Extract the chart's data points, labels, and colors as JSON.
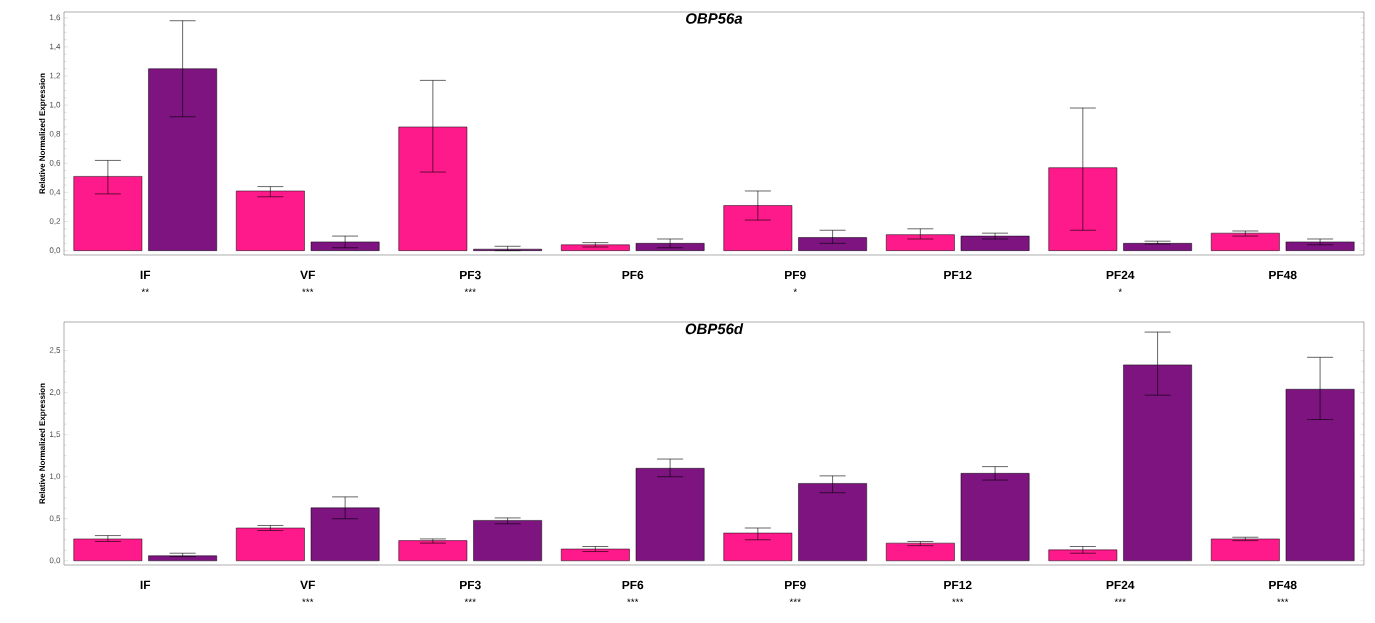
{
  "chart_data": [
    {
      "type": "bar",
      "title": "OBP56a",
      "ylabel": "Relative Normalized Expression",
      "categories": [
        "IF",
        "VF",
        "PF3",
        "PF6",
        "PF9",
        "PF12",
        "PF24",
        "PF48"
      ],
      "series": [
        {
          "color": "#ff1a8c",
          "values": [
            0.51,
            0.41,
            0.85,
            0.04,
            0.31,
            0.11,
            0.57,
            0.12
          ],
          "errors": [
            [
              0.39,
              0.62
            ],
            [
              0.37,
              0.44
            ],
            [
              0.54,
              1.17
            ],
            [
              0.025,
              0.055
            ],
            [
              0.21,
              0.41
            ],
            [
              0.08,
              0.15
            ],
            [
              0.14,
              0.98
            ],
            [
              0.1,
              0.135
            ]
          ]
        },
        {
          "color": "#7d1480",
          "values": [
            1.25,
            0.06,
            0.01,
            0.05,
            0.09,
            0.1,
            0.05,
            0.06
          ],
          "errors": [
            [
              0.92,
              1.58
            ],
            [
              0.02,
              0.1
            ],
            [
              0.0,
              0.03
            ],
            [
              0.02,
              0.08
            ],
            [
              0.05,
              0.14
            ],
            [
              0.08,
              0.12
            ],
            [
              0.045,
              0.065
            ],
            [
              0.04,
              0.08
            ]
          ]
        }
      ],
      "ylim": [
        -0.03,
        1.64
      ],
      "yticks": [
        {
          "value": 0,
          "label": "0,0"
        },
        {
          "value": 0.2,
          "label": "0,2"
        },
        {
          "value": 0.4,
          "label": "0,4"
        },
        {
          "value": 0.6,
          "label": "0,6"
        },
        {
          "value": 0.8,
          "label": "0,8"
        },
        {
          "value": 1.0,
          "label": "1,0"
        },
        {
          "value": 1.2,
          "label": "1,2"
        },
        {
          "value": 1.4,
          "label": "1,4"
        },
        {
          "value": 1.6,
          "label": "1,6"
        }
      ],
      "annotations": [
        "**",
        "***",
        "***",
        null,
        "*",
        null,
        "*",
        null
      ]
    },
    {
      "type": "bar",
      "title": "OBP56d",
      "ylabel": "Relative Normalized Expression",
      "categories": [
        "IF",
        "VF",
        "PF3",
        "PF6",
        "PF9",
        "PF12",
        "PF24",
        "PF48"
      ],
      "series": [
        {
          "color": "#ff1a8c",
          "values": [
            0.26,
            0.39,
            0.24,
            0.14,
            0.33,
            0.21,
            0.13,
            0.26
          ],
          "errors": [
            [
              0.23,
              0.3
            ],
            [
              0.36,
              0.42
            ],
            [
              0.21,
              0.26
            ],
            [
              0.11,
              0.17
            ],
            [
              0.25,
              0.39
            ],
            [
              0.18,
              0.23
            ],
            [
              0.09,
              0.17
            ],
            [
              0.24,
              0.28
            ]
          ]
        },
        {
          "color": "#7d1480",
          "values": [
            0.06,
            0.63,
            0.48,
            1.1,
            0.92,
            1.04,
            2.33,
            2.04
          ],
          "errors": [
            [
              0.05,
              0.09
            ],
            [
              0.5,
              0.76
            ],
            [
              0.44,
              0.51
            ],
            [
              1.0,
              1.21
            ],
            [
              0.81,
              1.01
            ],
            [
              0.96,
              1.12
            ],
            [
              1.97,
              2.72
            ],
            [
              1.68,
              2.42
            ]
          ]
        }
      ],
      "ylim": [
        -0.05,
        2.84
      ],
      "yticks": [
        {
          "value": 0,
          "label": "0,0"
        },
        {
          "value": 0.5,
          "label": "0,5"
        },
        {
          "value": 1.0,
          "label": "1,0"
        },
        {
          "value": 1.5,
          "label": "1,5"
        },
        {
          "value": 2.0,
          "label": "2,0"
        },
        {
          "value": 2.5,
          "label": "2,5"
        }
      ],
      "annotations": [
        null,
        "***",
        "***",
        "***",
        "***",
        "***",
        "***",
        "***"
      ]
    }
  ]
}
